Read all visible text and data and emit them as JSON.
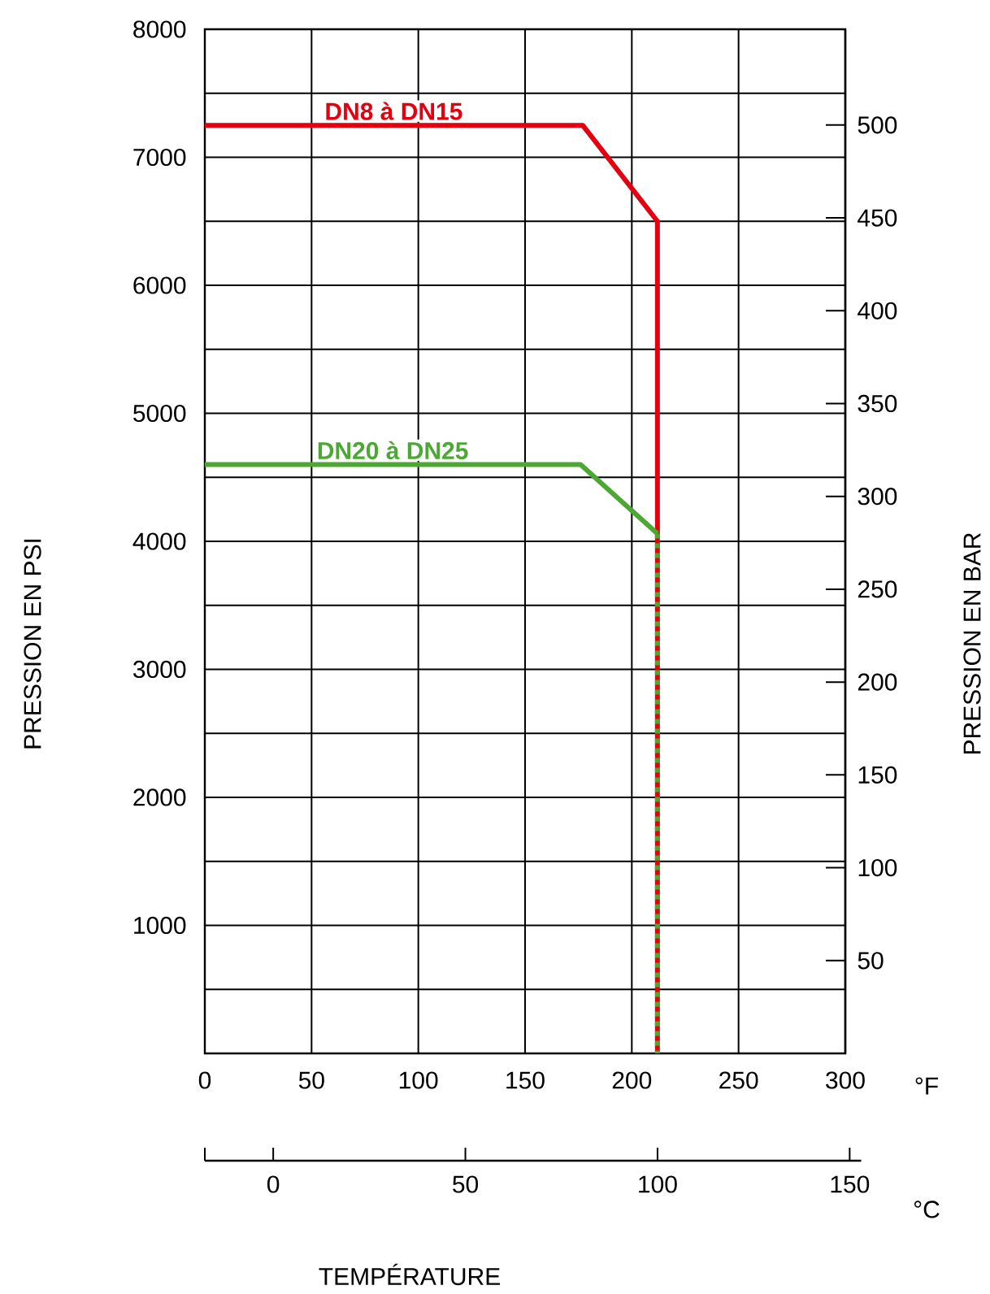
{
  "chart_data": {
    "type": "line",
    "xlabel": "TEMPÉRATURE",
    "ylabel": "PRESSION EN PSI",
    "y2label": "PRESSION EN BAR",
    "annotations": [
      "°F",
      "°C"
    ],
    "xlim": [
      0,
      300
    ],
    "xticks": [
      0,
      50,
      100,
      150,
      200,
      250,
      300
    ],
    "ylim": [
      0,
      8000
    ],
    "yticks": [
      {
        "value": 0,
        "label": null
      },
      {
        "value": 500,
        "label": null
      },
      1000,
      {
        "value": 1500,
        "label": null
      },
      2000,
      {
        "value": 2500,
        "label": null
      },
      3000,
      {
        "value": 3500,
        "label": null
      },
      4000,
      {
        "value": 4500,
        "label": null
      },
      5000,
      {
        "value": 5500,
        "label": null
      },
      6000,
      {
        "value": 6500,
        "label": null
      },
      7000,
      {
        "value": 7500,
        "label": null
      },
      8000
    ],
    "y2lim": [
      0,
      551.6
    ],
    "y2ticks": [
      50,
      100,
      150,
      200,
      250,
      300,
      350,
      400,
      450,
      500
    ],
    "x2lim": [
      -17.8,
      153
    ],
    "x2ticks": [
      {
        "value": -17.8,
        "label": null
      },
      0,
      50,
      100,
      150
    ],
    "grid": true,
    "line_style": "solid",
    "series": [
      {
        "name": "DN8 à DN15",
        "color": "#e3000f",
        "x": [
          0,
          177,
          212,
          212,
          212
        ],
        "values": [
          7250,
          7250,
          6500,
          4060,
          0
        ]
      },
      {
        "name": "DN20 à DN25",
        "color": "#4ca832",
        "x": [
          0,
          176,
          212
        ],
        "values": [
          4600,
          4600,
          4060
        ]
      },
      {
        "color": "#4ca832",
        "x": [
          212,
          212
        ],
        "values": [
          4060,
          0
        ],
        "line_style": "dashed"
      }
    ]
  }
}
